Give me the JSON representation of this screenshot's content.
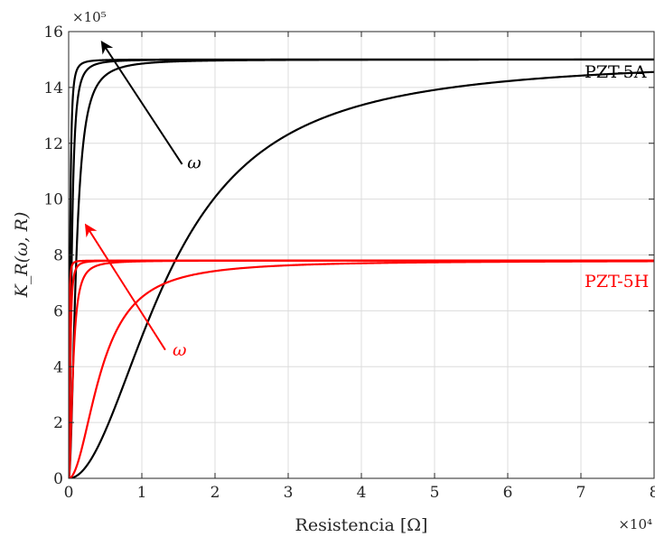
{
  "chart_data": {
    "type": "line",
    "xlabel": "Resistencia [Ω]",
    "ylabel": "K_R(ω, R)",
    "x_multiplier": "×10⁴",
    "y_multiplier": "×10⁵",
    "xlim": [
      0,
      80000
    ],
    "ylim": [
      0,
      1600000
    ],
    "x_ticks": [
      0,
      10000,
      20000,
      30000,
      40000,
      50000,
      60000,
      70000,
      80000
    ],
    "y_ticks": [
      0,
      200000,
      400000,
      600000,
      800000,
      1000000,
      1200000,
      1400000,
      1600000
    ],
    "x_tick_labels": [
      "0",
      "1",
      "2",
      "3",
      "4",
      "5",
      "6",
      "7",
      "8"
    ],
    "y_tick_labels": [
      "0",
      "2",
      "4",
      "6",
      "8",
      "10",
      "12",
      "14",
      "16"
    ],
    "grid": true,
    "series": [
      {
        "group": "PZT-5A",
        "color": "#000000",
        "asymptote": 1500000,
        "r_half": 14000,
        "n": 2
      },
      {
        "group": "PZT-5A",
        "color": "#000000",
        "asymptote": 1500000,
        "r_half": 1000,
        "n": 2
      },
      {
        "group": "PZT-5A",
        "color": "#000000",
        "asymptote": 1500000,
        "r_half": 400,
        "n": 2
      },
      {
        "group": "PZT-5A",
        "color": "#000000",
        "asymptote": 1500000,
        "r_half": 180,
        "n": 2
      },
      {
        "group": "PZT-5H",
        "color": "#ff0000",
        "asymptote": 780000,
        "r_half": 4500,
        "n": 2
      },
      {
        "group": "PZT-5H",
        "color": "#ff0000",
        "asymptote": 780000,
        "r_half": 600,
        "n": 2
      },
      {
        "group": "PZT-5H",
        "color": "#ff0000",
        "asymptote": 780000,
        "r_half": 200,
        "n": 2
      },
      {
        "group": "PZT-5H",
        "color": "#ff0000",
        "asymptote": 780000,
        "r_half": 70,
        "n": 2
      }
    ],
    "annotations": [
      {
        "id": "label-5a",
        "text": "PZT-5A",
        "x": 70500,
        "y": 1435000,
        "color": "#000000"
      },
      {
        "id": "label-5h",
        "text": "PZT-5H",
        "x": 70500,
        "y": 685000,
        "color": "#ff0000"
      },
      {
        "id": "omega-black",
        "text": "ω",
        "x": 16200,
        "y": 1110000,
        "color": "#000000"
      },
      {
        "id": "omega-red",
        "text": "ω",
        "x": 14200,
        "y": 440000,
        "color": "#ff0000"
      }
    ],
    "arrows": [
      {
        "id": "arrow-black",
        "from": [
          15500,
          1125000
        ],
        "to": [
          4600,
          1560000
        ],
        "color": "#000000"
      },
      {
        "id": "arrow-red",
        "from": [
          13200,
          460000
        ],
        "to": [
          2400,
          905000
        ],
        "color": "#ff0000"
      }
    ]
  }
}
